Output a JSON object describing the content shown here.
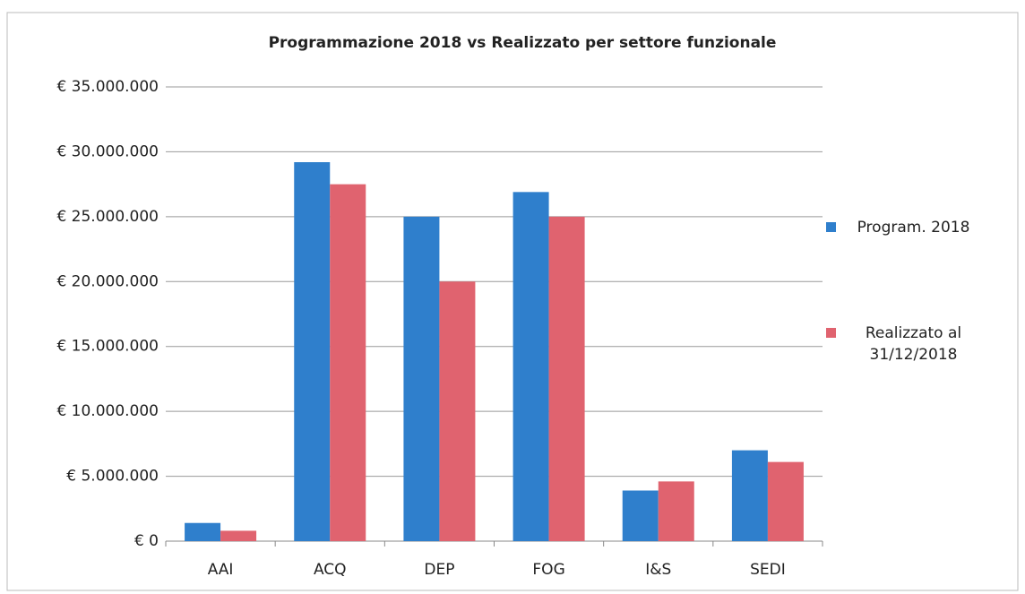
{
  "chart_data": {
    "type": "bar",
    "title": "Programmazione 2018 vs Realizzato per settore funzionale",
    "categories": [
      "AAI",
      "ACQ",
      "DEP",
      "FOG",
      "I&S",
      "SEDI"
    ],
    "series": [
      {
        "name": "Program. 2018",
        "color": "#2f7fcc",
        "values": [
          1400000,
          29200000,
          25000000,
          26900000,
          3900000,
          7000000
        ]
      },
      {
        "name": "Realizzato al 31/12/2018",
        "color": "#e0636f",
        "values": [
          800000,
          27500000,
          20000000,
          25000000,
          4600000,
          6100000
        ]
      }
    ],
    "ylim": [
      0,
      35000000
    ],
    "yticks": [
      {
        "value": 0,
        "label": "€ 0"
      },
      {
        "value": 5000000,
        "label": "€ 5.000.000"
      },
      {
        "value": 10000000,
        "label": "€ 10.000.000"
      },
      {
        "value": 15000000,
        "label": "€ 15.000.000"
      },
      {
        "value": 20000000,
        "label": "€ 20.000.000"
      },
      {
        "value": 25000000,
        "label": "€ 25.000.000"
      },
      {
        "value": 30000000,
        "label": "€ 30.000.000"
      },
      {
        "value": 35000000,
        "label": "€ 35.000.000"
      }
    ],
    "grid": true,
    "legend": "right"
  }
}
